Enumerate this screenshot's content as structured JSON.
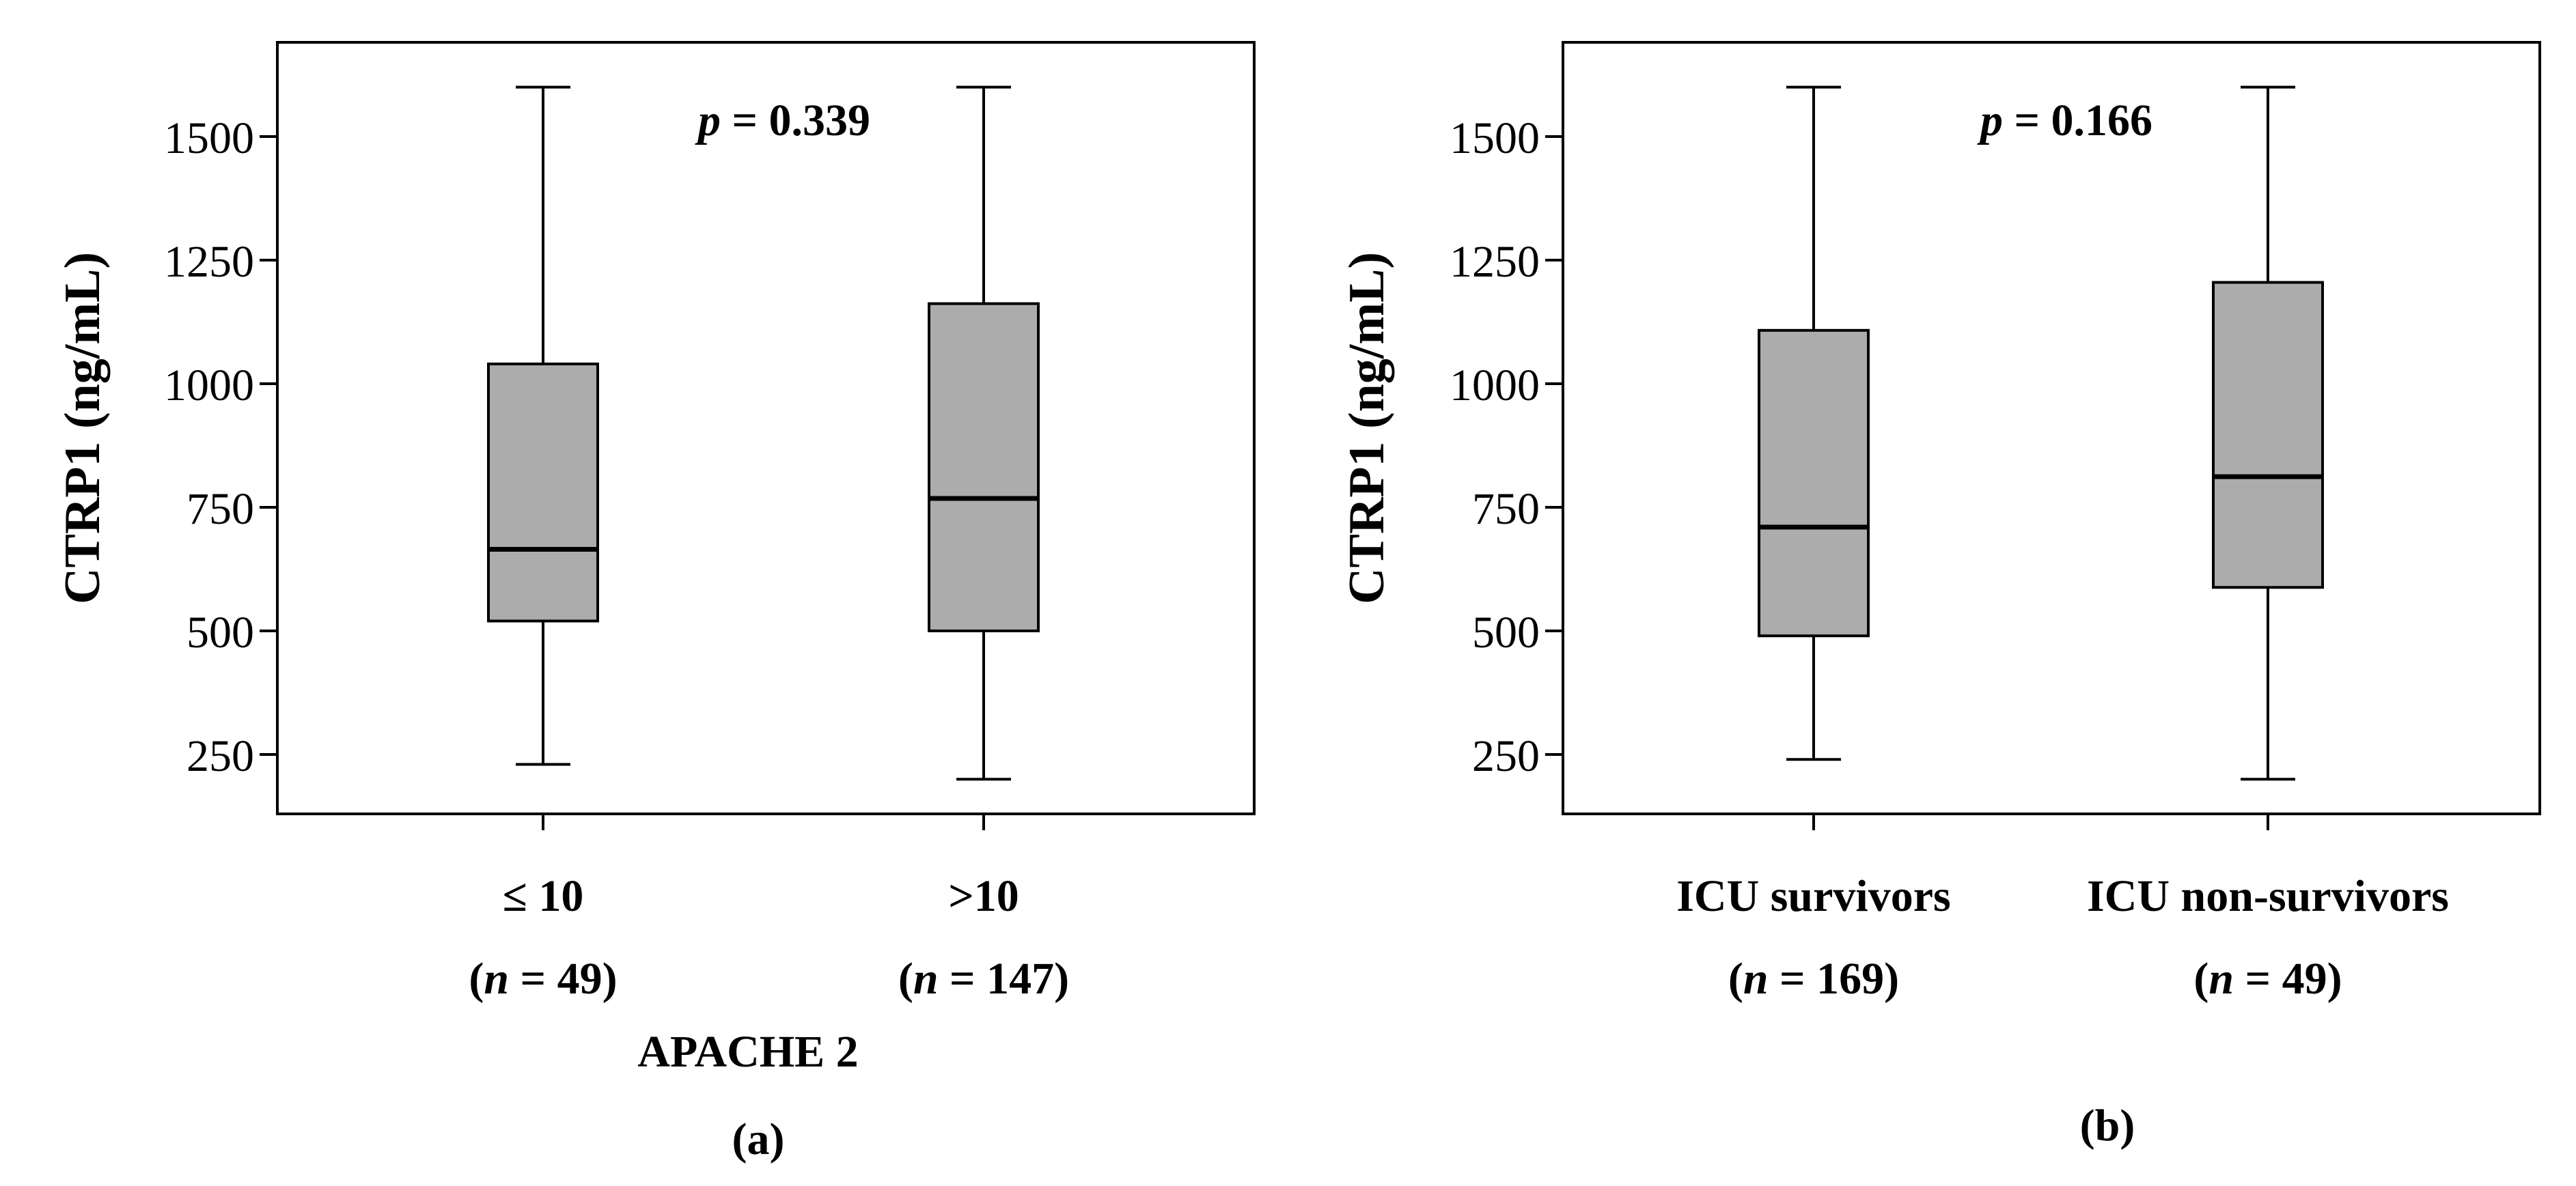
{
  "figure": {
    "caption_a": "(a)",
    "caption_b": "(b)"
  },
  "chart_data": [
    {
      "type": "box",
      "panel_label": "(a)",
      "ylabel": "CTRP1 (ng/mL)",
      "xlabel": "APACHE 2",
      "annotation": {
        "p_symbol": "p",
        "p_text": " = 0.339"
      },
      "ylim": [
        130,
        1700
      ],
      "yticks": [
        250,
        500,
        750,
        1000,
        1250,
        1500
      ],
      "boxes": [
        {
          "label": "≤ 10",
          "n_prefix": "(",
          "n_symbol": "n",
          "n_text": " = 49)",
          "min": 230,
          "q1": 520,
          "median": 665,
          "q3": 1040,
          "max": 1600
        },
        {
          "label": ">10",
          "n_prefix": "(",
          "n_symbol": "n",
          "n_text": " = 147)",
          "min": 200,
          "q1": 500,
          "median": 768,
          "q3": 1162,
          "max": 1600
        }
      ]
    },
    {
      "type": "box",
      "panel_label": "(b)",
      "ylabel": "CTRP1 (ng/mL)",
      "xlabel": "",
      "annotation": {
        "p_symbol": "p",
        "p_text": " = 0.166"
      },
      "ylim": [
        130,
        1700
      ],
      "yticks": [
        250,
        500,
        750,
        1000,
        1250,
        1500
      ],
      "boxes": [
        {
          "label": "ICU survivors",
          "n_prefix": "(",
          "n_symbol": "n",
          "n_text": " = 169)",
          "min": 240,
          "q1": 490,
          "median": 710,
          "q3": 1108,
          "max": 1600
        },
        {
          "label": "ICU non-survivors",
          "n_prefix": "(",
          "n_symbol": "n",
          "n_text": " = 49)",
          "min": 200,
          "q1": 588,
          "median": 812,
          "q3": 1205,
          "max": 1600
        }
      ]
    }
  ]
}
